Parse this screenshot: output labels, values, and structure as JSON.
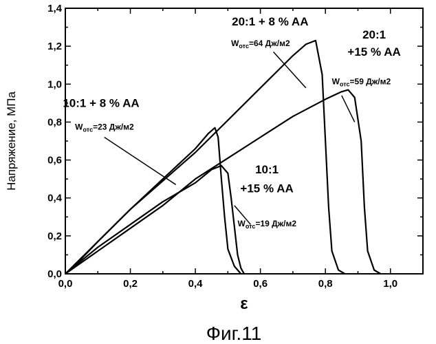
{
  "chart_data": {
    "type": "line",
    "title": "",
    "caption": "Фиг.11",
    "xlabel": "ε",
    "ylabel": "Напряжение, МПа",
    "xlim": [
      0.0,
      1.1
    ],
    "ylim": [
      0.0,
      1.4
    ],
    "x_ticks": [
      "0,0",
      "0,2",
      "0,4",
      "0,6",
      "0,8",
      "1,0"
    ],
    "y_ticks": [
      "0,0",
      "0,2",
      "0,4",
      "0,6",
      "0,8",
      "1,0",
      "1,2",
      "1,4"
    ],
    "grid": false,
    "legend": "none",
    "series": [
      {
        "name": "20:1 + 8 % AA",
        "energy_label": "Wотс=64 Дж/м2",
        "points": [
          [
            0,
            0
          ],
          [
            0.1,
            0.17
          ],
          [
            0.2,
            0.34
          ],
          [
            0.3,
            0.49
          ],
          [
            0.4,
            0.64
          ],
          [
            0.5,
            0.81
          ],
          [
            0.6,
            0.98
          ],
          [
            0.7,
            1.15
          ],
          [
            0.74,
            1.21
          ],
          [
            0.77,
            1.23
          ],
          [
            0.79,
            1.05
          ],
          [
            0.8,
            0.7
          ],
          [
            0.81,
            0.35
          ],
          [
            0.82,
            0.12
          ],
          [
            0.84,
            0.02
          ],
          [
            0.86,
            0
          ]
        ]
      },
      {
        "name": "20:1 +15 % AA",
        "energy_label": "Wотс=59 Дж/м2",
        "points": [
          [
            0,
            0
          ],
          [
            0.1,
            0.12
          ],
          [
            0.2,
            0.24
          ],
          [
            0.3,
            0.36
          ],
          [
            0.4,
            0.5
          ],
          [
            0.5,
            0.61
          ],
          [
            0.6,
            0.72
          ],
          [
            0.7,
            0.83
          ],
          [
            0.8,
            0.92
          ],
          [
            0.85,
            0.96
          ],
          [
            0.87,
            0.97
          ],
          [
            0.89,
            0.93
          ],
          [
            0.91,
            0.7
          ],
          [
            0.92,
            0.35
          ],
          [
            0.93,
            0.12
          ],
          [
            0.95,
            0.02
          ],
          [
            0.97,
            0
          ]
        ]
      },
      {
        "name": "10:1 + 8 % AA",
        "energy_label": "Wотс=23 Дж/м2",
        "points": [
          [
            0,
            0
          ],
          [
            0.05,
            0.08
          ],
          [
            0.1,
            0.17
          ],
          [
            0.2,
            0.34
          ],
          [
            0.3,
            0.5
          ],
          [
            0.4,
            0.66
          ],
          [
            0.44,
            0.74
          ],
          [
            0.46,
            0.77
          ],
          [
            0.47,
            0.72
          ],
          [
            0.48,
            0.5
          ],
          [
            0.49,
            0.3
          ],
          [
            0.5,
            0.13
          ],
          [
            0.52,
            0.04
          ],
          [
            0.54,
            0
          ]
        ]
      },
      {
        "name": "10:1 +15 % AA",
        "energy_label": "Wотс=19 Дж/м2",
        "points": [
          [
            0,
            0
          ],
          [
            0.1,
            0.14
          ],
          [
            0.2,
            0.26
          ],
          [
            0.3,
            0.38
          ],
          [
            0.4,
            0.48
          ],
          [
            0.45,
            0.55
          ],
          [
            0.48,
            0.57
          ],
          [
            0.5,
            0.53
          ],
          [
            0.51,
            0.4
          ],
          [
            0.52,
            0.25
          ],
          [
            0.53,
            0.1
          ],
          [
            0.54,
            0.03
          ],
          [
            0.55,
            0
          ]
        ]
      }
    ],
    "annotations": [
      {
        "text": "20:1 + 8 % AA",
        "x": 0.63,
        "y": 1.31
      },
      {
        "text": "20:1",
        "x": 0.95,
        "y": 1.24
      },
      {
        "text": "+15 % AA",
        "x": 0.95,
        "y": 1.15
      },
      {
        "text": "10:1 + 8 % AA",
        "x": 0.11,
        "y": 0.88
      },
      {
        "text": "10:1",
        "x": 0.62,
        "y": 0.53
      },
      {
        "text": "+15 % AA",
        "x": 0.62,
        "y": 0.43
      }
    ],
    "energy_annotations": [
      {
        "main": "W",
        "sub": "отс",
        "rest": "=64 Дж/м2",
        "x": 0.51,
        "y": 1.2
      },
      {
        "main": "W",
        "sub": "отс",
        "rest": "=59 Дж/м2",
        "x": 0.82,
        "y": 1.0
      },
      {
        "main": "W",
        "sub": "отс",
        "rest": "=23 Дж/м2",
        "x": 0.03,
        "y": 0.76
      },
      {
        "main": "W",
        "sub": "отс",
        "rest": "=19 Дж/м2",
        "x": 0.53,
        "y": 0.25
      }
    ]
  }
}
